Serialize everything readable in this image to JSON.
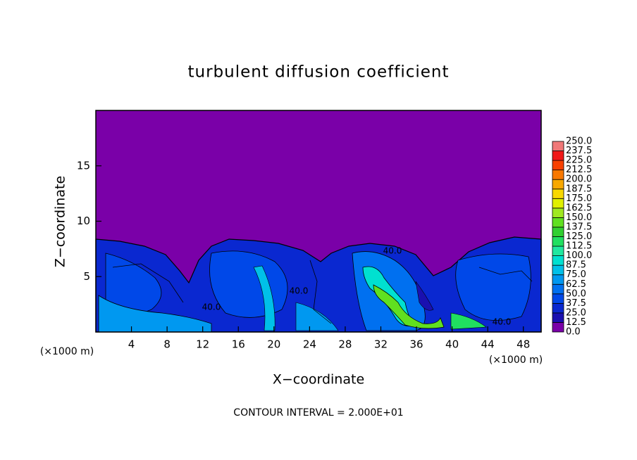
{
  "chart_data": {
    "type": "contour",
    "title": "turbulent diffusion coefficient",
    "x_label": "X−coordinate",
    "y_label": "Z−coordinate",
    "x_unit": "(×1000 m)",
    "y_unit": "(×1000 m)",
    "footer": "CONTOUR INTERVAL = 2.000E+01",
    "xlim": [
      0,
      50
    ],
    "xticks": [
      4,
      8,
      12,
      16,
      20,
      24,
      28,
      32,
      36,
      40,
      44,
      48
    ],
    "ylim": [
      0,
      20
    ],
    "yticks": [
      5,
      10,
      15
    ],
    "contour_labels": [
      "40.0",
      "40.0",
      "40.0",
      "40.0"
    ],
    "colorbar": {
      "clim": [
        0,
        250
      ],
      "levels": [
        {
          "value": 0,
          "label": "0.0"
        },
        {
          "value": 12.5,
          "label": "12.5"
        },
        {
          "value": 25,
          "label": "25.0"
        },
        {
          "value": 37.5,
          "label": "37.5"
        },
        {
          "value": 50,
          "label": "50.0"
        },
        {
          "value": 62.5,
          "label": "62.5"
        },
        {
          "value": 75,
          "label": "75.0"
        },
        {
          "value": 87.5,
          "label": "87.5"
        },
        {
          "value": 100,
          "label": "100.0"
        },
        {
          "value": 112.5,
          "label": "112.5"
        },
        {
          "value": 125,
          "label": "125.0"
        },
        {
          "value": 137.5,
          "label": "137.5"
        },
        {
          "value": 150,
          "label": "150.0"
        },
        {
          "value": 162.5,
          "label": "162.5"
        },
        {
          "value": 175,
          "label": "175.0"
        },
        {
          "value": 187.5,
          "label": "187.5"
        },
        {
          "value": 200,
          "label": "200.0"
        },
        {
          "value": 212.5,
          "label": "212.5"
        },
        {
          "value": 225,
          "label": "225.0"
        },
        {
          "value": 237.5,
          "label": "237.5"
        },
        {
          "value": 250,
          "label": "250.0"
        }
      ],
      "colors": [
        "#7a00a8",
        "#1a10b0",
        "#0a28d0",
        "#0048e8",
        "#0070f0",
        "#0098f0",
        "#00c0e8",
        "#00e0d0",
        "#20e8a0",
        "#20e060",
        "#30d030",
        "#60e020",
        "#a0e820",
        "#e0f000",
        "#f8d800",
        "#f8a800",
        "#f87800",
        "#f84000",
        "#f01818",
        "#f07878"
      ]
    }
  }
}
